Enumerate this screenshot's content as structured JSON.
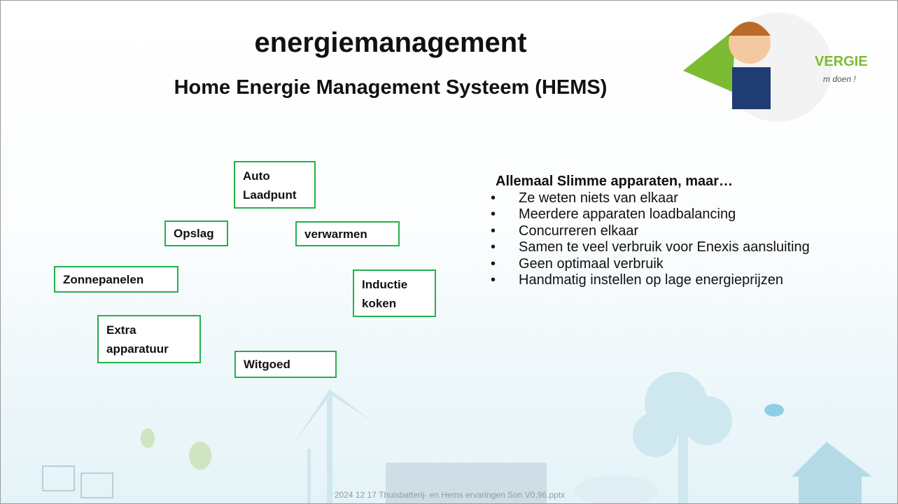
{
  "header": {
    "title": "energiemanagement",
    "subtitle": "Home Energie Management Systeem (HEMS)"
  },
  "logo": {
    "brand": "VERGIE",
    "slogan": "m doen !"
  },
  "boxes": [
    {
      "lines": [
        "Auto",
        "Laadpunt"
      ]
    },
    {
      "lines": [
        "Opslag"
      ]
    },
    {
      "lines": [
        "verwarmen"
      ]
    },
    {
      "lines": [
        "Zonnepanelen"
      ]
    },
    {
      "lines": [
        "Inductie",
        "koken"
      ]
    },
    {
      "lines": [
        "Extra",
        "apparatuur"
      ]
    },
    {
      "lines": [
        "Witgoed"
      ]
    }
  ],
  "panel": {
    "heading": "Allemaal Slimme apparaten, maar…",
    "bullets": [
      "Ze weten niets van elkaar",
      "Meerdere apparaten loadbalancing",
      "Concurreren elkaar",
      "Samen te veel verbruik voor Enexis aansluiting",
      "Geen optimaal verbruik",
      "Handmatig instellen op lage energieprijzen"
    ]
  },
  "footer": "2024 12 17 Thuisbatterij- en Hems ervaringen Son V0.96.pptx"
}
